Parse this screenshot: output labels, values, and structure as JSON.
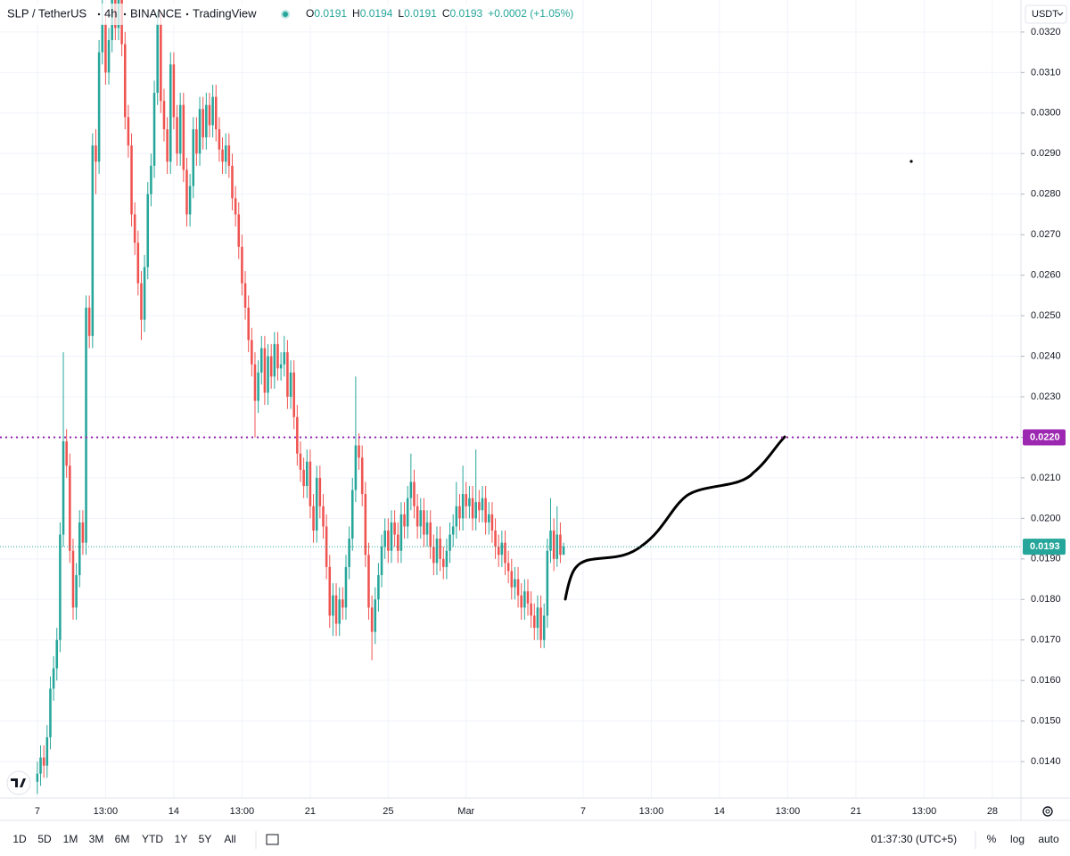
{
  "header": {
    "symbol": "SLP / TetherUS",
    "interval": "4h",
    "exchange": "BINANCE",
    "source": "TradingView",
    "ohlc": [
      {
        "key": "O",
        "value": "0.0191"
      },
      {
        "key": "H",
        "value": "0.0194"
      },
      {
        "key": "L",
        "value": "0.0191"
      },
      {
        "key": "C",
        "value": "0.0193"
      }
    ],
    "change": "+0.0002 (+1.05%)"
  },
  "currency": "USDT",
  "chart_data": {
    "type": "candlestick",
    "up_color": "#26a69a",
    "down_color": "#ef5350",
    "grid": true,
    "ylim": [
      0.0131,
      0.03279
    ],
    "xlim": [
      -11.5,
      302.8
    ],
    "yticks": [
      {
        "value": 0.014,
        "label": "0.0140"
      },
      {
        "value": 0.015,
        "label": "0.0150"
      },
      {
        "value": 0.016,
        "label": "0.0160"
      },
      {
        "value": 0.017,
        "label": "0.0170"
      },
      {
        "value": 0.018,
        "label": "0.0180"
      },
      {
        "value": 0.019,
        "label": "0.0190"
      },
      {
        "value": 0.02,
        "label": "0.0200"
      },
      {
        "value": 0.021,
        "label": "0.0210"
      },
      {
        "value": 0.022,
        "label": "0.0220"
      },
      {
        "value": 0.023,
        "label": "0.0230"
      },
      {
        "value": 0.024,
        "label": "0.0240"
      },
      {
        "value": 0.025,
        "label": "0.0250"
      },
      {
        "value": 0.026,
        "label": "0.0260"
      },
      {
        "value": 0.027,
        "label": "0.0270"
      },
      {
        "value": 0.028,
        "label": "0.0280"
      },
      {
        "value": 0.029,
        "label": "0.0290"
      },
      {
        "value": 0.03,
        "label": "0.0300"
      },
      {
        "value": 0.031,
        "label": "0.0310"
      },
      {
        "value": 0.032,
        "label": "0.0320"
      }
    ],
    "xticks": [
      {
        "value": 0,
        "label": "7"
      },
      {
        "value": 21,
        "label": "13:00"
      },
      {
        "value": 42,
        "label": "14"
      },
      {
        "value": 63,
        "label": "13:00"
      },
      {
        "value": 84,
        "label": "21"
      },
      {
        "value": 108,
        "label": "25"
      },
      {
        "value": 132,
        "label": "Mar"
      },
      {
        "value": 168,
        "label": "7"
      },
      {
        "value": 189,
        "label": "13:00"
      },
      {
        "value": 210,
        "label": "14"
      },
      {
        "value": 231,
        "label": "13:00"
      },
      {
        "value": 252,
        "label": "21"
      },
      {
        "value": 273,
        "label": "13:00"
      },
      {
        "value": 294,
        "label": "28"
      }
    ],
    "hlines": [
      {
        "value": 0.022,
        "label": "0.0220",
        "color": "#9c27b0"
      },
      {
        "value": 0.0193,
        "label": "0.0193",
        "color": "#26a69a"
      }
    ],
    "open": [
      0.0135,
      0.0137,
      0.0141,
      0.0139,
      0.0146,
      0.0158,
      0.0163,
      0.017,
      0.0196,
      0.0219,
      0.0213,
      0.0192,
      0.0178,
      0.0186,
      0.0199,
      0.0194,
      0.0252,
      0.0245,
      0.0292,
      0.0288,
      0.0315,
      0.0322,
      0.031,
      0.0318,
      0.0329,
      0.0321,
      0.033,
      0.0317,
      0.0299,
      0.0292,
      0.0275,
      0.0268,
      0.0258,
      0.0249,
      0.0262,
      0.028,
      0.0287,
      0.0305,
      0.0322,
      0.0303,
      0.0296,
      0.0288,
      0.0312,
      0.0299,
      0.029,
      0.0302,
      0.0286,
      0.0275,
      0.0282,
      0.0296,
      0.029,
      0.0301,
      0.0294,
      0.0302,
      0.0297,
      0.0304,
      0.0296,
      0.0291,
      0.0288,
      0.0292,
      0.0287,
      0.0279,
      0.0275,
      0.0267,
      0.0258,
      0.0252,
      0.0244,
      0.0238,
      0.0229,
      0.0236,
      0.0242,
      0.0231,
      0.024,
      0.0235,
      0.0243,
      0.0237,
      0.0238,
      0.0241,
      0.023,
      0.0236,
      0.0225,
      0.0216,
      0.0212,
      0.0208,
      0.0214,
      0.0203,
      0.0197,
      0.021,
      0.0203,
      0.0198,
      0.0188,
      0.0176,
      0.0181,
      0.0174,
      0.018,
      0.0178,
      0.0188,
      0.0195,
      0.0207,
      0.0218,
      0.0215,
      0.0206,
      0.0191,
      0.0178,
      0.0172,
      0.018,
      0.0186,
      0.0193,
      0.0197,
      0.0192,
      0.0199,
      0.0196,
      0.0192,
      0.0201,
      0.0198,
      0.0205,
      0.0209,
      0.0203,
      0.0198,
      0.0202,
      0.0196,
      0.0199,
      0.0193,
      0.0189,
      0.0195,
      0.019,
      0.0188,
      0.0192,
      0.0196,
      0.0198,
      0.0203,
      0.02,
      0.0206,
      0.0203,
      0.0205,
      0.02,
      0.0204,
      0.0202,
      0.0205,
      0.0199,
      0.0201,
      0.0197,
      0.0193,
      0.0191,
      0.0194,
      0.0189,
      0.0187,
      0.0183,
      0.0185,
      0.0181,
      0.0178,
      0.0182,
      0.0179,
      0.0176,
      0.0173,
      0.0178,
      0.017,
      0.0176,
      0.0192,
      0.0197,
      0.019,
      0.0196,
      0.0191
    ],
    "high": [
      0.014,
      0.0144,
      0.0144,
      0.0149,
      0.0161,
      0.0166,
      0.0173,
      0.0199,
      0.0241,
      0.0222,
      0.0216,
      0.0195,
      0.0189,
      0.0202,
      0.0202,
      0.0255,
      0.0255,
      0.0295,
      0.0296,
      0.0318,
      0.033,
      0.0325,
      0.0321,
      0.0332,
      0.0332,
      0.0333,
      0.0333,
      0.032,
      0.0302,
      0.0295,
      0.0278,
      0.0271,
      0.0261,
      0.0265,
      0.0283,
      0.029,
      0.0308,
      0.0325,
      0.0325,
      0.0306,
      0.0299,
      0.0315,
      0.0315,
      0.0302,
      0.0305,
      0.0305,
      0.0289,
      0.0285,
      0.0299,
      0.0299,
      0.0304,
      0.0304,
      0.0305,
      0.0305,
      0.0307,
      0.0307,
      0.0299,
      0.0294,
      0.0295,
      0.0295,
      0.029,
      0.0282,
      0.0278,
      0.027,
      0.0261,
      0.0255,
      0.0247,
      0.0241,
      0.0239,
      0.0245,
      0.0245,
      0.0243,
      0.0243,
      0.0246,
      0.0246,
      0.0241,
      0.0245,
      0.0244,
      0.0239,
      0.0239,
      0.0228,
      0.0219,
      0.0215,
      0.0217,
      0.0217,
      0.0206,
      0.0213,
      0.0213,
      0.0206,
      0.0201,
      0.0191,
      0.0184,
      0.0184,
      0.0183,
      0.0183,
      0.0191,
      0.0198,
      0.021,
      0.0235,
      0.0221,
      0.0218,
      0.0209,
      0.0194,
      0.0181,
      0.0183,
      0.0189,
      0.0196,
      0.02,
      0.02,
      0.0202,
      0.0202,
      0.0199,
      0.0204,
      0.0204,
      0.0208,
      0.0216,
      0.0212,
      0.0206,
      0.0205,
      0.0205,
      0.0202,
      0.0202,
      0.0196,
      0.0198,
      0.0198,
      0.0193,
      0.0195,
      0.0199,
      0.0201,
      0.0209,
      0.0206,
      0.0213,
      0.0209,
      0.0208,
      0.0208,
      0.0217,
      0.0207,
      0.0208,
      0.0208,
      0.0204,
      0.0204,
      0.02,
      0.0196,
      0.0197,
      0.0197,
      0.0192,
      0.019,
      0.0188,
      0.0188,
      0.0184,
      0.0185,
      0.0185,
      0.0182,
      0.0179,
      0.0181,
      0.0181,
      0.0179,
      0.0195,
      0.0205,
      0.02,
      0.0203,
      0.0199,
      0.0194
    ],
    "low": [
      0.0132,
      0.0134,
      0.0136,
      0.0136,
      0.0143,
      0.0155,
      0.016,
      0.0167,
      0.0193,
      0.021,
      0.0189,
      0.0175,
      0.0175,
      0.0183,
      0.0191,
      0.0191,
      0.0242,
      0.0242,
      0.028,
      0.0285,
      0.0312,
      0.0307,
      0.0307,
      0.0315,
      0.0318,
      0.0318,
      0.0314,
      0.0296,
      0.0289,
      0.0272,
      0.0265,
      0.0255,
      0.0244,
      0.0246,
      0.0259,
      0.0277,
      0.0284,
      0.0302,
      0.03,
      0.0293,
      0.0285,
      0.0285,
      0.0296,
      0.0287,
      0.0287,
      0.0283,
      0.0272,
      0.0272,
      0.0279,
      0.0287,
      0.0287,
      0.0291,
      0.0291,
      0.0294,
      0.0294,
      0.0293,
      0.0288,
      0.0285,
      0.0285,
      0.0284,
      0.0276,
      0.0272,
      0.0264,
      0.0255,
      0.0249,
      0.0241,
      0.0235,
      0.022,
      0.0226,
      0.0233,
      0.0228,
      0.0228,
      0.0232,
      0.0232,
      0.0234,
      0.0234,
      0.0235,
      0.0227,
      0.0227,
      0.0222,
      0.0213,
      0.0209,
      0.0205,
      0.0205,
      0.02,
      0.0194,
      0.0194,
      0.02,
      0.0195,
      0.0185,
      0.0173,
      0.0171,
      0.0171,
      0.0171,
      0.0175,
      0.0175,
      0.0185,
      0.0192,
      0.0204,
      0.0212,
      0.0203,
      0.0188,
      0.0175,
      0.0165,
      0.0169,
      0.0177,
      0.0183,
      0.019,
      0.0189,
      0.0189,
      0.0193,
      0.0189,
      0.0189,
      0.0195,
      0.0195,
      0.0202,
      0.02,
      0.0195,
      0.0195,
      0.0193,
      0.0193,
      0.019,
      0.0186,
      0.0186,
      0.0187,
      0.0185,
      0.0185,
      0.0189,
      0.0193,
      0.0195,
      0.0197,
      0.0197,
      0.02,
      0.02,
      0.0197,
      0.0197,
      0.0199,
      0.0199,
      0.0196,
      0.0196,
      0.0194,
      0.019,
      0.0188,
      0.0188,
      0.0186,
      0.0184,
      0.018,
      0.018,
      0.0178,
      0.0175,
      0.0175,
      0.0176,
      0.0173,
      0.017,
      0.017,
      0.0168,
      0.0168,
      0.0173,
      0.0189,
      0.0187,
      0.0188,
      0.0189,
      0.0191
    ],
    "close": [
      0.0137,
      0.0141,
      0.0139,
      0.0146,
      0.0158,
      0.0163,
      0.017,
      0.0196,
      0.0219,
      0.0213,
      0.0192,
      0.0178,
      0.0186,
      0.0199,
      0.0194,
      0.0252,
      0.0245,
      0.0292,
      0.0288,
      0.0315,
      0.0322,
      0.031,
      0.0318,
      0.0329,
      0.0321,
      0.033,
      0.0317,
      0.0299,
      0.0292,
      0.0275,
      0.0268,
      0.0258,
      0.0249,
      0.0262,
      0.028,
      0.0287,
      0.0305,
      0.0322,
      0.0303,
      0.0296,
      0.0288,
      0.0312,
      0.0299,
      0.029,
      0.0302,
      0.0286,
      0.0275,
      0.0282,
      0.0296,
      0.029,
      0.0301,
      0.0294,
      0.0302,
      0.0297,
      0.0304,
      0.0296,
      0.0291,
      0.0288,
      0.0292,
      0.0287,
      0.0279,
      0.0275,
      0.0267,
      0.0258,
      0.0252,
      0.0244,
      0.0238,
      0.0229,
      0.0236,
      0.0242,
      0.0231,
      0.024,
      0.0235,
      0.0243,
      0.0237,
      0.0238,
      0.0241,
      0.023,
      0.0236,
      0.0225,
      0.0216,
      0.0212,
      0.0208,
      0.0214,
      0.0203,
      0.0197,
      0.021,
      0.0203,
      0.0198,
      0.0188,
      0.0176,
      0.0181,
      0.0174,
      0.018,
      0.0178,
      0.0188,
      0.0195,
      0.0207,
      0.0218,
      0.0215,
      0.0206,
      0.0191,
      0.0178,
      0.0172,
      0.018,
      0.0186,
      0.0193,
      0.0197,
      0.0192,
      0.0199,
      0.0196,
      0.0192,
      0.0201,
      0.0198,
      0.0205,
      0.0209,
      0.0203,
      0.0198,
      0.0202,
      0.0196,
      0.0199,
      0.0193,
      0.0189,
      0.0195,
      0.019,
      0.0188,
      0.0192,
      0.0196,
      0.0198,
      0.0203,
      0.02,
      0.0206,
      0.0203,
      0.0205,
      0.02,
      0.0204,
      0.0202,
      0.0205,
      0.0199,
      0.0201,
      0.0197,
      0.0193,
      0.0191,
      0.0194,
      0.0189,
      0.0187,
      0.0183,
      0.0185,
      0.0181,
      0.0178,
      0.0182,
      0.0179,
      0.0176,
      0.0173,
      0.0178,
      0.017,
      0.0176,
      0.0192,
      0.0197,
      0.019,
      0.0196,
      0.0191,
      0.0193
    ]
  },
  "toolbar": {
    "ranges": [
      "1D",
      "5D",
      "1M",
      "3M",
      "6M",
      "YTD",
      "1Y",
      "5Y",
      "All"
    ],
    "clock": "01:37:30 (UTC+5)",
    "scale": [
      "%",
      "log",
      "auto"
    ]
  }
}
